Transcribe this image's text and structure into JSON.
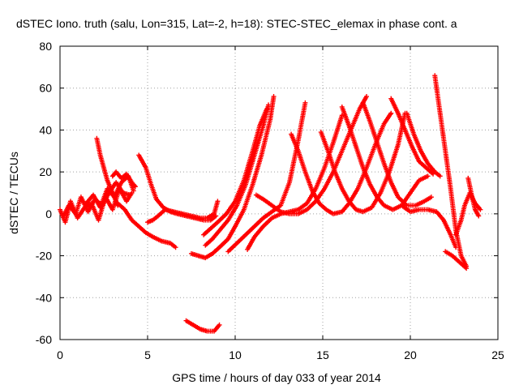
{
  "chart_data": {
    "type": "scatter",
    "title": "dSTEC Iono. truth (salu, Lon=315, Lat=-2, h=18): STEC-STEC_elemax in phase cont. a",
    "xlabel": "GPS time / hours of day 033 of year 2014",
    "ylabel": "dSTEC  / TECUs",
    "xlim": [
      0,
      25
    ],
    "ylim": [
      -60,
      80
    ],
    "xticks": [
      "0",
      "5",
      "10",
      "15",
      "20",
      "25"
    ],
    "yticks": [
      "-60",
      "-40",
      "-20",
      "0",
      "20",
      "40",
      "60",
      "80"
    ],
    "xtick_values": [
      0,
      5,
      10,
      15,
      20,
      25
    ],
    "ytick_values": [
      -60,
      -40,
      -20,
      0,
      20,
      40,
      60,
      80
    ],
    "grid": true,
    "marker": "+",
    "color": "#ff0000",
    "series": [
      {
        "x": [
          0,
          0.3,
          0.6,
          1.0,
          1.4,
          1.8,
          2.2,
          2.6,
          3.0,
          3.4,
          3.8,
          4.1
        ],
        "y": [
          2,
          -4,
          6,
          -2,
          3,
          5,
          -3,
          8,
          2,
          12,
          6,
          10
        ]
      },
      {
        "x": [
          0.2,
          0.5,
          0.9,
          1.2,
          1.6,
          2.0,
          2.4,
          2.8,
          3.2,
          3.6,
          4.0
        ],
        "y": [
          -1,
          4,
          0,
          8,
          1,
          7,
          4,
          10,
          15,
          10,
          9
        ]
      },
      {
        "x": [
          1.5,
          1.9,
          2.3,
          2.7,
          3.1,
          3.5,
          3.9,
          4.2
        ],
        "y": [
          5,
          9,
          3,
          12,
          8,
          15,
          18,
          11
        ]
      },
      {
        "x": [
          2.1,
          2.3,
          2.5,
          2.7,
          2.9,
          3.1,
          3.3
        ],
        "y": [
          36,
          28,
          22,
          16,
          12,
          8,
          4
        ]
      },
      {
        "x": [
          3.0,
          3.2,
          3.5,
          3.8,
          4.1,
          4.3
        ],
        "y": [
          18,
          20,
          17,
          19,
          15,
          13
        ]
      },
      {
        "x": [
          4.5,
          4.9,
          5.2,
          5.5,
          5.9,
          6.3,
          6.7,
          7.2,
          7.7,
          8.2,
          8.6,
          8.9
        ],
        "y": [
          28,
          22,
          14,
          7,
          3,
          1,
          0,
          -1,
          -2,
          -3,
          -3,
          -1
        ]
      },
      {
        "x": [
          3.3,
          3.7,
          4.1,
          4.5,
          4.9,
          5.3,
          5.8,
          6.3,
          6.6
        ],
        "y": [
          5,
          2,
          -3,
          -6,
          -9,
          -11,
          -13,
          -14,
          -16
        ]
      },
      {
        "x": [
          5.0,
          5.3,
          5.6,
          6.0,
          6.5,
          7.0,
          7.5,
          8.0,
          8.4,
          8.8,
          9.0
        ],
        "y": [
          -4,
          -3,
          -1,
          2,
          1,
          0,
          -1,
          -2,
          -2,
          0,
          6
        ]
      },
      {
        "x": [
          7.5,
          7.9,
          8.3,
          8.7,
          9.1,
          9.6,
          10.0,
          10.5,
          11.0,
          11.5,
          12.0,
          12.2
        ],
        "y": [
          -19,
          -20,
          -21,
          -19,
          -16,
          -12,
          -6,
          2,
          14,
          28,
          45,
          56
        ]
      },
      {
        "x": [
          8.3,
          8.7,
          9.1,
          9.6,
          10.1,
          10.6,
          11.1,
          11.6,
          11.9
        ],
        "y": [
          -15,
          -12,
          -8,
          -3,
          4,
          14,
          28,
          42,
          52
        ]
      },
      {
        "x": [
          8.2,
          8.6,
          9.0,
          9.5,
          10.0,
          10.5,
          11.0,
          11.4,
          11.8
        ],
        "y": [
          -10,
          -7,
          -4,
          0,
          6,
          16,
          30,
          42,
          50
        ]
      },
      {
        "x": [
          7.2,
          7.6,
          8.0,
          8.4,
          8.8,
          9.1
        ],
        "y": [
          -51,
          -53,
          -55,
          -56,
          -56,
          -53
        ]
      },
      {
        "x": [
          9.6,
          10.1,
          10.6,
          11.1,
          11.6,
          12.1,
          12.6,
          13.1,
          13.6,
          14.0
        ],
        "y": [
          -18,
          -14,
          -10,
          -6,
          -2,
          1,
          4,
          15,
          35,
          53
        ]
      },
      {
        "x": [
          10.7,
          11.1,
          11.6,
          12.1,
          12.6,
          13.1,
          13.6,
          14.1,
          14.6,
          15.1,
          15.6,
          16.1
        ],
        "y": [
          -17,
          -11,
          -6,
          -2,
          0,
          1,
          2,
          5,
          12,
          22,
          34,
          47
        ]
      },
      {
        "x": [
          11.2,
          11.6,
          12.1,
          12.6,
          13.1,
          13.6,
          14.1,
          14.6,
          15.1,
          15.6,
          16.1,
          16.6,
          17.1,
          17.5
        ],
        "y": [
          9,
          7,
          4,
          1,
          0,
          0,
          2,
          6,
          12,
          20,
          30,
          40,
          50,
          56
        ]
      },
      {
        "x": [
          13.2,
          13.6,
          14.0,
          14.4,
          14.8,
          15.2,
          15.6,
          16.1,
          16.5,
          17.0,
          17.5,
          18.0,
          18.5,
          18.9
        ],
        "y": [
          38,
          30,
          20,
          11,
          5,
          2,
          0,
          1,
          5,
          12,
          22,
          33,
          43,
          48
        ]
      },
      {
        "x": [
          14.9,
          15.3,
          15.7,
          16.1,
          16.5,
          16.9,
          17.3,
          17.8,
          18.3,
          18.8,
          19.3,
          19.7
        ],
        "y": [
          39,
          30,
          20,
          12,
          6,
          2,
          1,
          3,
          10,
          20,
          33,
          48
        ]
      },
      {
        "x": [
          16.1,
          16.5,
          16.9,
          17.3,
          17.7,
          18.1,
          18.5,
          19.0,
          19.5,
          20.0,
          20.5,
          21.0
        ],
        "y": [
          51,
          42,
          32,
          22,
          14,
          8,
          4,
          2,
          4,
          10,
          16,
          18
        ]
      },
      {
        "x": [
          17.3,
          17.7,
          18.1,
          18.5,
          18.9,
          19.3,
          19.8,
          20.3,
          20.8,
          21.2
        ],
        "y": [
          53,
          44,
          34,
          24,
          15,
          8,
          4,
          4,
          6,
          8
        ]
      },
      {
        "x": [
          18.9,
          19.3,
          19.7,
          20.1,
          20.5,
          20.9,
          21.3
        ],
        "y": [
          55,
          48,
          40,
          32,
          25,
          22,
          19
        ]
      },
      {
        "x": [
          19.8,
          20.2,
          20.6,
          21.0,
          21.4,
          21.7
        ],
        "y": [
          48,
          38,
          30,
          24,
          20,
          18
        ]
      },
      {
        "x": [
          21.4,
          21.7,
          22.0,
          22.3,
          22.6,
          22.9,
          23.2
        ],
        "y": [
          66,
          48,
          30,
          12,
          -8,
          -20,
          -25
        ]
      },
      {
        "x": [
          19.5,
          20.0,
          20.5,
          21.0,
          21.5,
          21.9,
          22.3,
          22.6
        ],
        "y": [
          4,
          1,
          2,
          2,
          1,
          -3,
          -10,
          -16
        ]
      },
      {
        "x": [
          22.0,
          22.4,
          22.8,
          23.2
        ],
        "y": [
          -18,
          -20,
          -23,
          -26
        ]
      },
      {
        "x": [
          22.6,
          22.9,
          23.1,
          23.4,
          23.7,
          24.0
        ],
        "y": [
          -10,
          -3,
          4,
          10,
          5,
          2
        ]
      },
      {
        "x": [
          23.3,
          23.5,
          23.7,
          23.9
        ],
        "y": [
          17,
          9,
          2,
          -1
        ]
      }
    ]
  }
}
